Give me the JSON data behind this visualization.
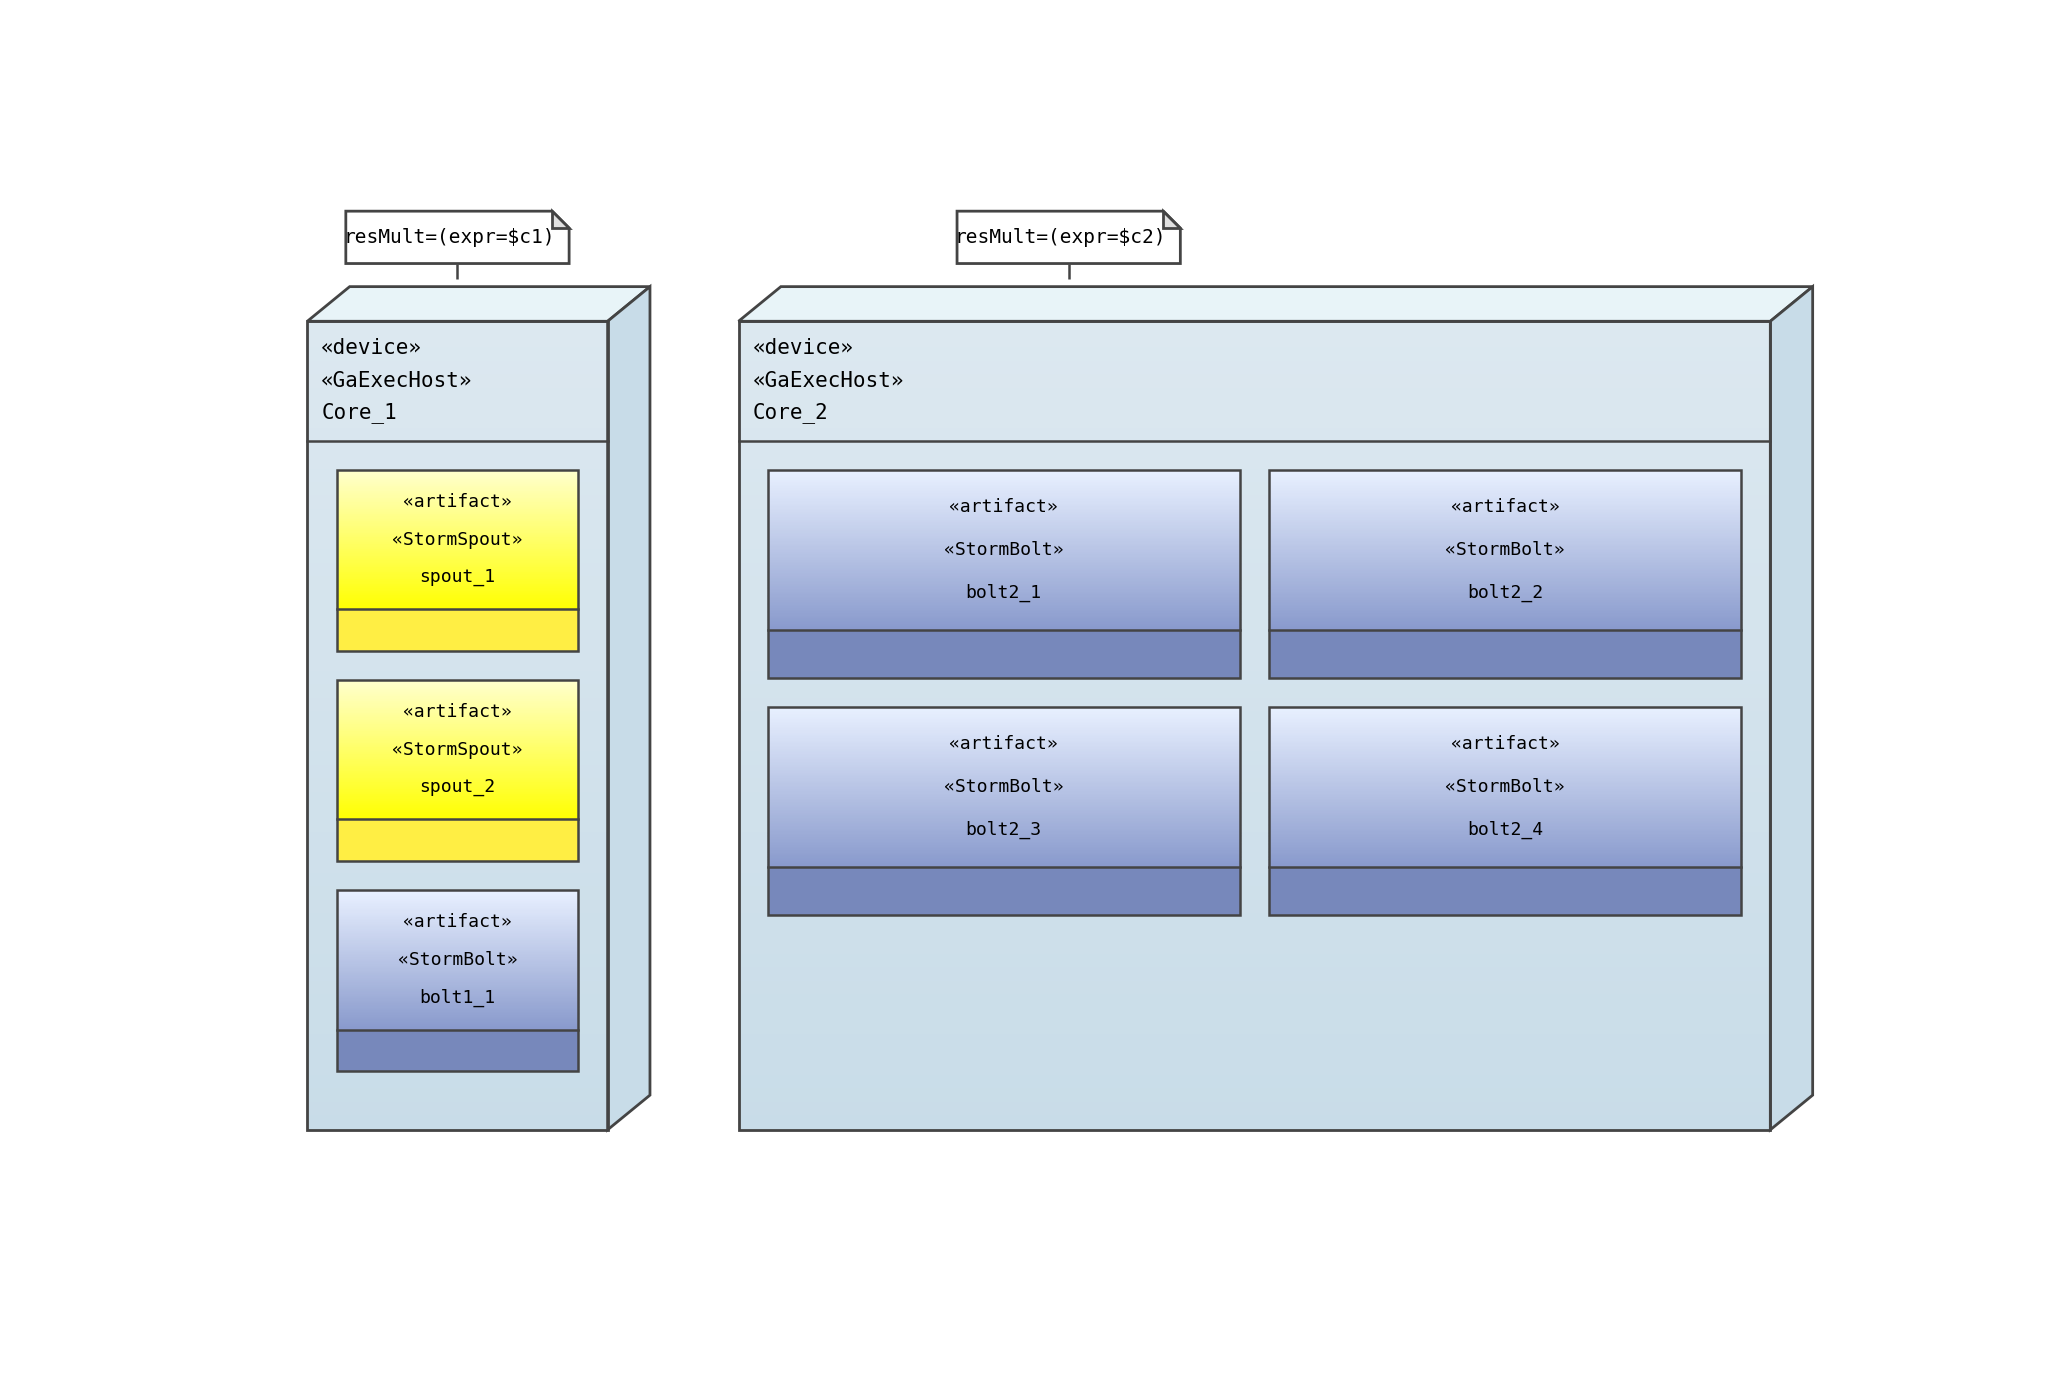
{
  "bg_color": "#ffffff",
  "device_bg": "#dce8f0",
  "device_border": "#444444",
  "device_top_color": "#e8f4f8",
  "device_right_color": "#c8dce8",
  "hdr_line_color": "#444444",
  "spout_top": "#ffffcc",
  "spout_bottom": "#ffff00",
  "spout_bar": "#ffee44",
  "bolt_top": "#e8f0ff",
  "bolt_bottom": "#8899cc",
  "bolt_bar": "#7788bb",
  "artifact_border": "#444444",
  "note_border": "#444444",
  "dashed_color": "#444444",
  "font_family": "monospace",
  "note1_text": "resMult=(expr=$c1)",
  "note2_text": "resMult=(expr=$c2)",
  "core1_l1": "«device»",
  "core1_l2": "«GaExecHost»",
  "core1_l3": "Core_1",
  "core2_l1": "«device»",
  "core2_l2": "«GaExecHost»",
  "core2_l3": "Core_2",
  "sp1_l1": "«artifact»",
  "sp1_l2": "«StormSpout»",
  "sp1_l3": "spout_1",
  "sp2_l1": "«artifact»",
  "sp2_l2": "«StormSpout»",
  "sp2_l3": "spout_2",
  "b1_l1": "«artifact»",
  "b1_l2": "«StormBolt»",
  "b1_l3": "bolt1_1",
  "b21_l1": "«artifact»",
  "b21_l2": "«StormBolt»",
  "b21_l3": "bolt2_1",
  "b22_l1": "«artifact»",
  "b22_l2": "«StormBolt»",
  "b22_l3": "bolt2_2",
  "b23_l1": "«artifact»",
  "b23_l2": "«StormBolt»",
  "b23_l3": "bolt2_3",
  "b24_l1": "«artifact»",
  "b24_l2": "«StormBolt»",
  "b24_l3": "bolt2_4"
}
